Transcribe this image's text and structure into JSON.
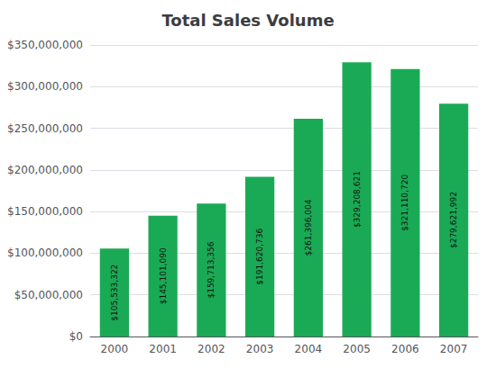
{
  "chart_data": {
    "type": "bar",
    "title": "Total Sales Volume",
    "categories": [
      "2000",
      "2001",
      "2002",
      "2003",
      "2004",
      "2005",
      "2006",
      "2007"
    ],
    "values": [
      105533322,
      145101090,
      159713356,
      191620736,
      261396004,
      329208621,
      321110720,
      279621992
    ],
    "value_labels": [
      "$105,533,322",
      "$145,101,090",
      "$159,713,356",
      "$191,620,736",
      "$261,396,004",
      "$329,208,621",
      "$321,110,720",
      "$279,621,992"
    ],
    "data_labels": true,
    "color": "#1aaa55",
    "ylim": [
      0,
      350000000
    ],
    "yticks": [
      {
        "value": 0,
        "label": "$0"
      },
      {
        "value": 50000000,
        "label": "$50,000,000"
      },
      {
        "value": 100000000,
        "label": "$100,000,000"
      },
      {
        "value": 150000000,
        "label": "$150,000,000"
      },
      {
        "value": 200000000,
        "label": "$200,000,000"
      },
      {
        "value": 250000000,
        "label": "$250,000,000"
      },
      {
        "value": 300000000,
        "label": "$300,000,000"
      },
      {
        "value": 350000000,
        "label": "$350,000,000"
      }
    ],
    "grid": true
  }
}
